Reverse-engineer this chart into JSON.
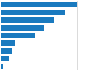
{
  "values": [
    10800,
    9100,
    7600,
    6100,
    4800,
    2000,
    1550,
    1150,
    350
  ],
  "bar_color": "#1a7abf",
  "background_color": "#ffffff",
  "grid_color": "#cccccc",
  "xlim": [
    0,
    14000
  ],
  "bar_height": 0.72,
  "figsize": [
    1.0,
    0.71
  ],
  "dpi": 100
}
